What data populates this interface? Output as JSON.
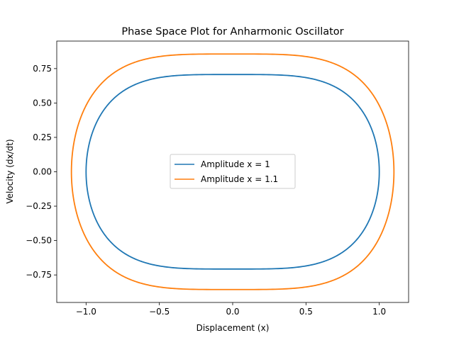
{
  "chart_data": {
    "type": "line",
    "title": "Phase Space Plot for Anharmonic Oscillator",
    "xlabel": "Displacement (x)",
    "ylabel": "Velocity (dx/dt)",
    "xlim": [
      -1.2,
      1.2
    ],
    "ylim": [
      -0.95,
      0.95
    ],
    "xticks": [
      -1.0,
      -0.5,
      0.0,
      0.5,
      1.0
    ],
    "xtick_labels": [
      "−1.0",
      "−0.5",
      "0.0",
      "0.5",
      "1.0"
    ],
    "yticks": [
      -0.75,
      -0.5,
      -0.25,
      0.0,
      0.25,
      0.5,
      0.75
    ],
    "ytick_labels": [
      "−0.75",
      "−0.50",
      "−0.25",
      "0.00",
      "0.25",
      "0.50",
      "0.75"
    ],
    "grid": false,
    "legend_position": "center",
    "series": [
      {
        "name": "Amplitude x = 1",
        "color": "#1f77b4",
        "amplitude": 1.0,
        "max_velocity": 0.707
      },
      {
        "name": "Amplitude x = 1.1",
        "color": "#ff7f0e",
        "amplitude": 1.1,
        "max_velocity": 0.856
      }
    ]
  }
}
